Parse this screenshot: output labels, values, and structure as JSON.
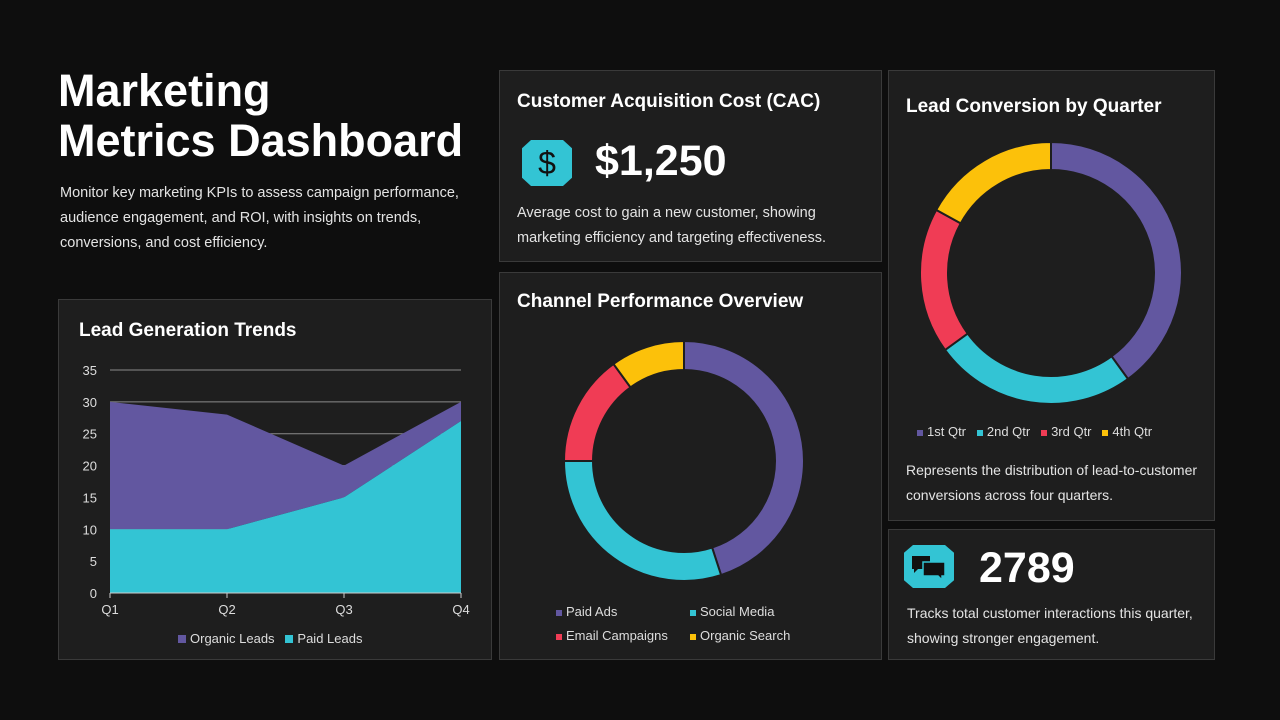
{
  "header": {
    "title_line1": "Marketing",
    "title_line2": "Metrics Dashboard",
    "description": "Monitor key marketing KPIs to assess campaign performance, audience engagement, and ROI, with insights on trends, conversions, and cost efficiency."
  },
  "cac": {
    "title": "Customer Acquisition Cost (CAC)",
    "icon": "dollar-icon",
    "value": "$1,250",
    "description": "Average cost to gain a new customer, showing marketing efficiency and targeting effectiveness."
  },
  "interactions": {
    "icon": "chat-bubbles-icon",
    "value": "2789",
    "description": "Tracks total customer interactions this quarter, showing stronger engagement."
  },
  "colors": {
    "purple": "#6257a0",
    "teal": "#33c4d4",
    "red": "#f03c55",
    "yellow": "#fcc10a"
  },
  "chart_data": [
    {
      "type": "area",
      "stacked": true,
      "title": "Lead Generation Trends",
      "categories": [
        "Q1",
        "Q2",
        "Q3",
        "Q4"
      ],
      "ylim": [
        0,
        35
      ],
      "yticks": [
        "0",
        "5",
        "10",
        "15",
        "20",
        "25",
        "30",
        "35"
      ],
      "grid": true,
      "legend": "bottom",
      "series": [
        {
          "name": "Organic Leads",
          "values": [
            20,
            18,
            5,
            3
          ],
          "color": "#6257a0"
        },
        {
          "name": "Paid Leads",
          "values": [
            10,
            10,
            15,
            27
          ],
          "color": "#33c4d4"
        }
      ]
    },
    {
      "type": "pie",
      "donut": true,
      "title": "Channel Performance Overview",
      "legend": "bottom",
      "slices": [
        {
          "name": "Paid Ads",
          "value": 45,
          "color": "#6257a0"
        },
        {
          "name": "Social Media",
          "value": 30,
          "color": "#33c4d4"
        },
        {
          "name": "Email Campaigns",
          "value": 15,
          "color": "#f03c55"
        },
        {
          "name": "Organic Search",
          "value": 10,
          "color": "#fcc10a"
        }
      ]
    },
    {
      "type": "pie",
      "donut": true,
      "title": "Lead Conversion by Quarter",
      "legend": "bottom",
      "description": "Represents the distribution of lead-to-customer conversions across four quarters.",
      "slices": [
        {
          "name": "1st Qtr",
          "value": 40,
          "color": "#6257a0"
        },
        {
          "name": "2nd Qtr",
          "value": 25,
          "color": "#33c4d4"
        },
        {
          "name": "3rd Qtr",
          "value": 18,
          "color": "#f03c55"
        },
        {
          "name": "4th Qtr",
          "value": 17,
          "color": "#fcc10a"
        }
      ]
    }
  ]
}
